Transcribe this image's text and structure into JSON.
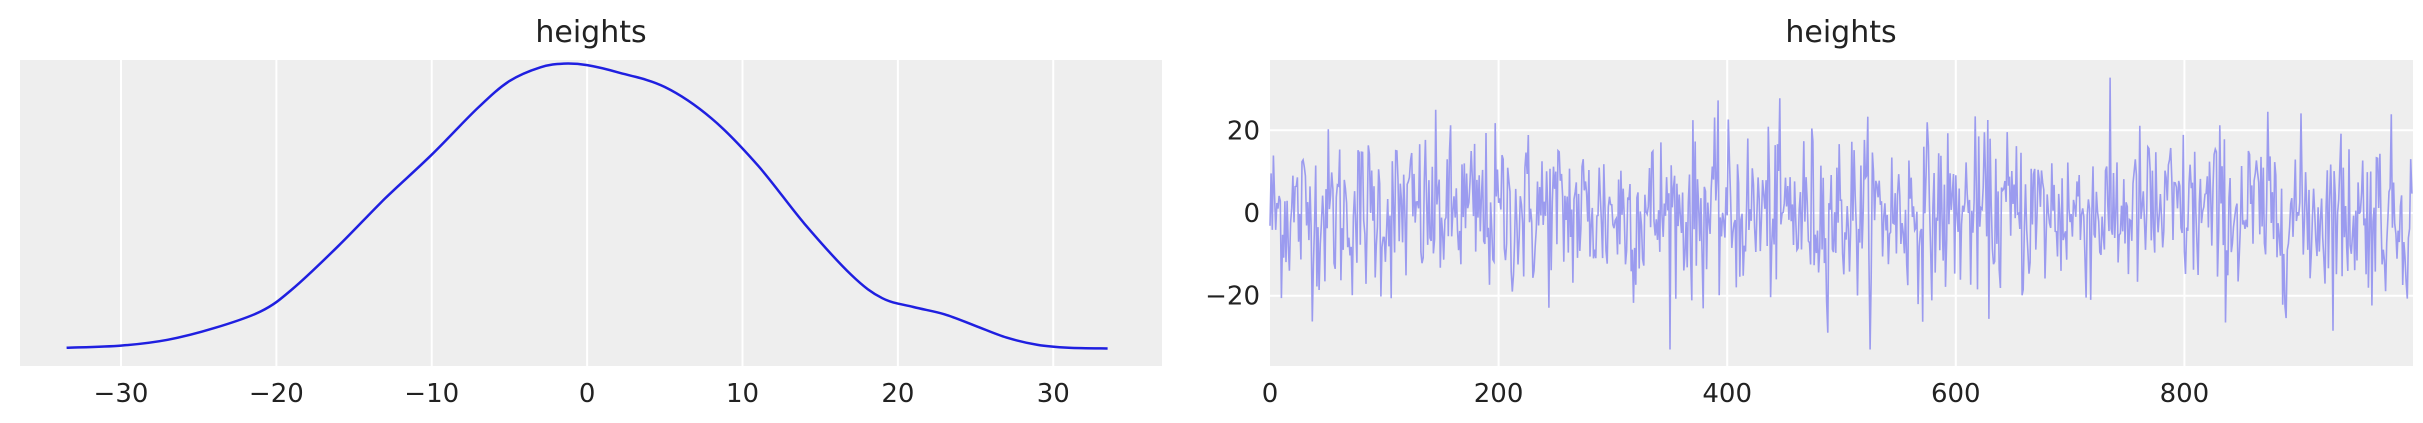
{
  "chart_data": [
    {
      "type": "line",
      "title": "heights",
      "xlabel": "",
      "ylabel": "",
      "xlim": [
        -36.5,
        37
      ],
      "ylim": [
        -0.0015,
        0.0405
      ],
      "xticks": [
        -30,
        -20,
        -10,
        0,
        10,
        20,
        30
      ],
      "xtick_labels": [
        "−30",
        "−20",
        "−10",
        "0",
        "10",
        "20",
        "30"
      ],
      "yticks": [],
      "grid": true,
      "color": "#1f1fe0",
      "series": [
        {
          "x": [
            -33.5,
            -30,
            -27,
            -24,
            -21,
            -19,
            -16,
            -13,
            -10,
            -7,
            -5,
            -3,
            -1.5,
            0,
            2,
            5,
            8,
            11,
            14,
            17,
            19,
            21,
            23,
            25,
            27,
            29,
            31,
            33.5
          ],
          "values": [
            0.001,
            0.0013,
            0.0021,
            0.0037,
            0.006,
            0.009,
            0.015,
            0.0215,
            0.0275,
            0.034,
            0.0376,
            0.0395,
            0.04,
            0.0398,
            0.0388,
            0.0368,
            0.0325,
            0.026,
            0.018,
            0.011,
            0.0078,
            0.0066,
            0.0056,
            0.004,
            0.0024,
            0.0014,
            0.001,
            0.0009
          ]
        }
      ]
    },
    {
      "type": "line",
      "title": "heights",
      "xlabel": "",
      "ylabel": "",
      "xlim": [
        0,
        1000
      ],
      "ylim": [
        -37,
        37
      ],
      "xticks": [
        0,
        200,
        400,
        600,
        800
      ],
      "xtick_labels": [
        "0",
        "200",
        "400",
        "600",
        "800"
      ],
      "yticks": [
        -20,
        0,
        20
      ],
      "ytick_labels": [
        "−20",
        "0",
        "20"
      ],
      "grid": true,
      "color": "#9b9bef",
      "n_draws": 1000,
      "amplitude_sd": 10
    }
  ]
}
